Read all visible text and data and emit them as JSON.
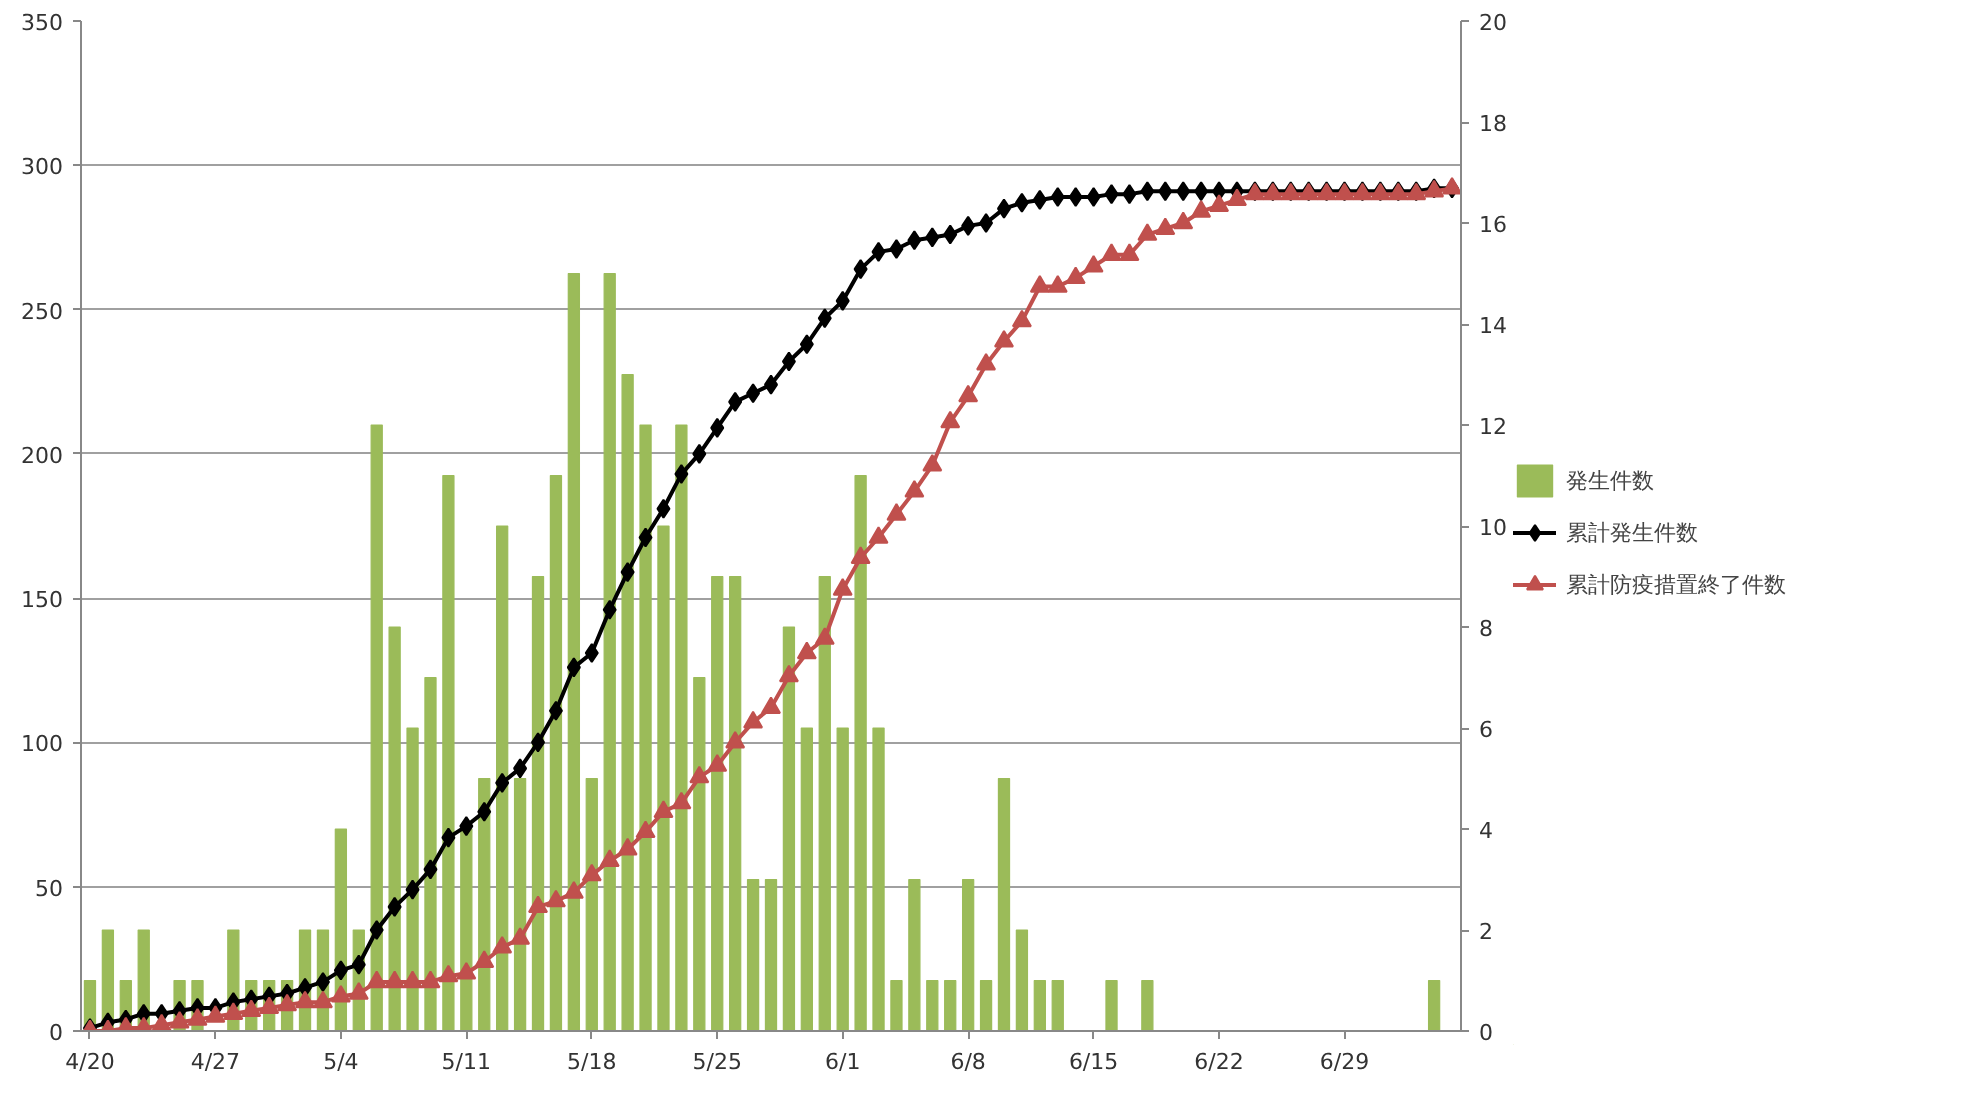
{
  "chart_data": {
    "type": "line",
    "categories": [
      "4/20",
      null,
      null,
      null,
      null,
      null,
      null,
      "4/27",
      null,
      null,
      null,
      null,
      null,
      null,
      "5/4",
      null,
      null,
      null,
      null,
      null,
      null,
      "5/11",
      null,
      null,
      null,
      null,
      null,
      null,
      "5/18",
      null,
      null,
      null,
      null,
      null,
      null,
      "5/25",
      null,
      null,
      null,
      null,
      null,
      null,
      "6/1",
      null,
      null,
      null,
      null,
      null,
      null,
      "6/8",
      null,
      null,
      null,
      null,
      null,
      null,
      "6/15",
      null,
      null,
      null,
      null,
      null,
      null,
      "6/22",
      null,
      null,
      null,
      null,
      null,
      null,
      "6/29",
      null,
      null,
      null,
      null,
      null,
      null
    ],
    "series": [
      {
        "name": "発生件数",
        "type": "bar",
        "axis": "y2",
        "color": "#9bbb59",
        "values": [
          1,
          2,
          1,
          2,
          0,
          1,
          1,
          0,
          2,
          1,
          1,
          1,
          2,
          2,
          4,
          2,
          12,
          8,
          6,
          7,
          11,
          4,
          5,
          10,
          5,
          9,
          11,
          15,
          5,
          15,
          13,
          12,
          10,
          12,
          7,
          9,
          9,
          3,
          3,
          8,
          6,
          9,
          6,
          11,
          6,
          1,
          3,
          1,
          1,
          3,
          1,
          5,
          2,
          1,
          1,
          0,
          0,
          1,
          0,
          1,
          0,
          0,
          0,
          0,
          0,
          0,
          0,
          0,
          0,
          0,
          0,
          0,
          0,
          0,
          0,
          1,
          0
        ]
      },
      {
        "name": "累計発生件数",
        "color": "#000000",
        "marker": "diamond",
        "values": [
          1,
          3,
          4,
          6,
          6,
          7,
          8,
          8,
          10,
          11,
          12,
          13,
          15,
          17,
          21,
          23,
          35,
          43,
          49,
          56,
          67,
          71,
          76,
          86,
          91,
          100,
          111,
          126,
          131,
          146,
          159,
          171,
          181,
          193,
          200,
          209,
          218,
          221,
          224,
          232,
          238,
          247,
          253,
          264,
          270,
          271,
          274,
          275,
          276,
          279,
          280,
          285,
          287,
          288,
          289,
          289,
          289,
          290,
          290,
          291,
          291,
          291,
          291,
          291,
          291,
          291,
          291,
          291,
          291,
          291,
          291,
          291,
          291,
          291,
          291,
          292,
          292
        ]
      },
      {
        "name": "累計防疫措置終了件数",
        "color": "#c0504d",
        "marker": "triangle",
        "values": [
          0,
          0,
          1,
          1,
          2,
          3,
          4,
          5,
          6,
          7,
          8,
          9,
          10,
          10,
          12,
          13,
          17,
          17,
          17,
          17,
          19,
          20,
          24,
          29,
          32,
          43,
          45,
          48,
          54,
          59,
          63,
          69,
          76,
          79,
          88,
          92,
          100,
          107,
          112,
          123,
          131,
          136,
          153,
          164,
          171,
          179,
          187,
          196,
          211,
          220,
          231,
          239,
          246,
          258,
          258,
          261,
          265,
          269,
          269,
          276,
          278,
          280,
          284,
          286,
          288,
          290,
          290,
          290,
          290,
          290,
          290,
          290,
          290,
          290,
          290,
          291,
          292
        ]
      }
    ],
    "ylim": [
      0,
      350
    ],
    "yticks": [
      0,
      50,
      100,
      150,
      200,
      250,
      300,
      350
    ],
    "y2lim": [
      0,
      20
    ],
    "y2ticks": [
      0,
      2,
      4,
      6,
      8,
      10,
      12,
      14,
      16,
      18,
      20
    ],
    "grid": "y",
    "legend": "right",
    "line_style": "solid"
  }
}
